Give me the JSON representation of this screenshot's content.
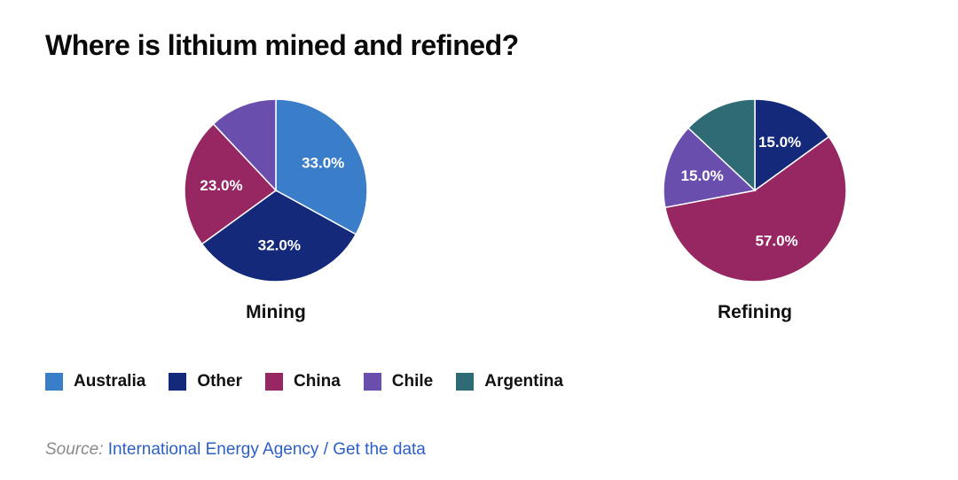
{
  "title": "Where is lithium mined and refined?",
  "colors": {
    "Australia": "#3a7dc9",
    "Other": "#14297a",
    "China": "#962763",
    "Chile": "#6a4ead",
    "Argentina": "#2e6b74"
  },
  "legend": [
    "Australia",
    "Other",
    "China",
    "Chile",
    "Argentina"
  ],
  "chart_data": [
    {
      "type": "pie",
      "title": "Mining",
      "slices": [
        {
          "name": "Australia",
          "value": 33.0,
          "label": "33.0%"
        },
        {
          "name": "Other",
          "value": 32.0,
          "label": "32.0%"
        },
        {
          "name": "China",
          "value": 23.0,
          "label": "23.0%"
        },
        {
          "name": "Chile",
          "value": 12.0,
          "label": ""
        }
      ]
    },
    {
      "type": "pie",
      "title": "Refining",
      "slices": [
        {
          "name": "Other",
          "value": 15.0,
          "label": "15.0%"
        },
        {
          "name": "China",
          "value": 57.0,
          "label": "57.0%"
        },
        {
          "name": "Chile",
          "value": 15.0,
          "label": "15.0%"
        },
        {
          "name": "Argentina",
          "value": 13.0,
          "label": ""
        }
      ]
    }
  ],
  "source": {
    "prefix": "Source:",
    "link": "International Energy Agency",
    "separator": "/",
    "data_link": "Get the data"
  }
}
